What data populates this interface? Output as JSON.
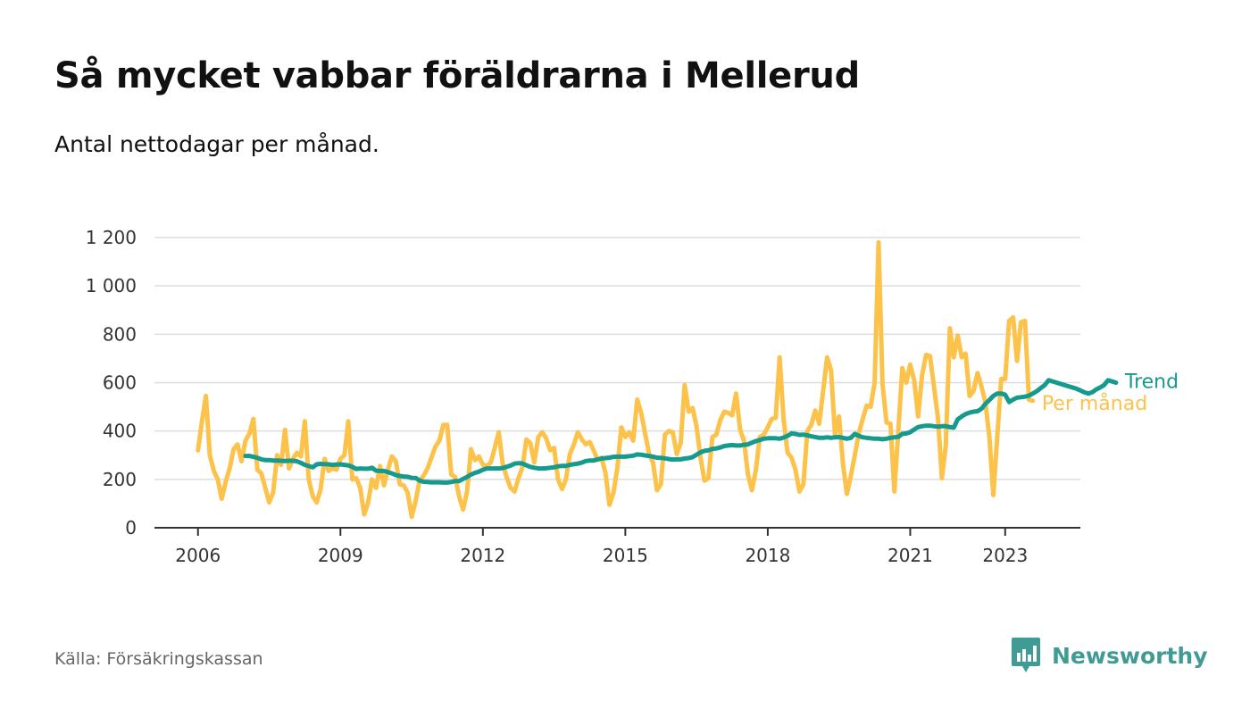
{
  "header": {
    "title": "Så mycket vabbar föräldrarna i Mellerud",
    "subtitle": "Antal nettodagar per månad."
  },
  "footer": {
    "source": "Källa: Försäkringskassan",
    "brand": "Newsworthy",
    "brand_icon": "bar-chart-speech-bubble-icon"
  },
  "colors": {
    "monthly": "#fcc24a",
    "trend": "#169a8d",
    "grid": "#dddddd",
    "axis": "#333333",
    "brand": "#3f9b93"
  },
  "chart_data": {
    "type": "line",
    "title": "Så mycket vabbar föräldrarna i Mellerud",
    "subtitle": "Antal nettodagar per månad.",
    "xlabel": "",
    "ylabel": "",
    "x_start": "2006-01",
    "x_end": "2023-06",
    "xlim": [
      "2005-02",
      "2024-08"
    ],
    "ylim": [
      0,
      1200
    ],
    "y_ticks": [
      0,
      200,
      400,
      600,
      800,
      1000,
      1200
    ],
    "y_tick_labels": [
      "0",
      "200",
      "400",
      "600",
      "800",
      "1 000",
      "1 200"
    ],
    "x_ticks": [
      "2006-01",
      "2009-01",
      "2012-01",
      "2015-01",
      "2018-01",
      "2021-01",
      "2023-01"
    ],
    "x_tick_labels": [
      "2006",
      "2009",
      "2012",
      "2015",
      "2018",
      "2021",
      "2023"
    ],
    "grid": true,
    "legend": "end-of-line labels",
    "series": [
      {
        "name": "Per månad",
        "color": "#fcc24a",
        "start": "2006-01",
        "values": [
          320,
          440,
          545,
          300,
          235,
          200,
          120,
          190,
          245,
          325,
          345,
          275,
          360,
          390,
          450,
          240,
          225,
          165,
          105,
          145,
          300,
          260,
          405,
          245,
          285,
          310,
          295,
          440,
          200,
          130,
          105,
          160,
          285,
          235,
          245,
          240,
          285,
          300,
          440,
          200,
          205,
          165,
          55,
          105,
          200,
          165,
          255,
          175,
          240,
          295,
          275,
          180,
          175,
          145,
          45,
          110,
          195,
          215,
          245,
          290,
          335,
          360,
          425,
          425,
          220,
          210,
          130,
          75,
          150,
          325,
          280,
          295,
          260,
          255,
          270,
          330,
          395,
          265,
          210,
          165,
          150,
          205,
          250,
          365,
          350,
          270,
          375,
          395,
          370,
          320,
          330,
          200,
          160,
          200,
          305,
          345,
          395,
          365,
          345,
          355,
          320,
          280,
          290,
          225,
          95,
          145,
          250,
          415,
          375,
          395,
          360,
          530,
          475,
          390,
          305,
          270,
          155,
          180,
          385,
          400,
          395,
          305,
          350,
          590,
          480,
          495,
          420,
          290,
          195,
          205,
          375,
          385,
          445,
          480,
          475,
          465,
          555,
          405,
          360,
          220,
          155,
          240,
          375,
          385,
          415,
          450,
          455,
          705,
          450,
          310,
          290,
          240,
          150,
          180,
          400,
          425,
          485,
          430,
          565,
          705,
          650,
          385,
          460,
          265,
          140,
          215,
          300,
          390,
          450,
          505,
          500,
          600,
          1180,
          595,
          435,
          430,
          150,
          400,
          660,
          600,
          675,
          610,
          460,
          630,
          715,
          710,
          585,
          455,
          205,
          340,
          825,
          705,
          795,
          705,
          720,
          545,
          565,
          640,
          585,
          520,
          375,
          135,
          375,
          615,
          615,
          855,
          870,
          690,
          850,
          855,
          530,
          525
        ]
      },
      {
        "name": "Trend",
        "color": "#169a8d",
        "start": "2007-01",
        "values": [
          297,
          297,
          293,
          289,
          283,
          280,
          280,
          278,
          278,
          277,
          276,
          277,
          277,
          275,
          268,
          260,
          255,
          250,
          262,
          264,
          263,
          262,
          260,
          261,
          262,
          260,
          258,
          252,
          243,
          245,
          244,
          244,
          248,
          236,
          235,
          235,
          230,
          225,
          218,
          214,
          212,
          211,
          206,
          206,
          195,
          190,
          189,
          188,
          188,
          188,
          187,
          187,
          189,
          193,
          193,
          202,
          210,
          220,
          227,
          232,
          240,
          245,
          245,
          245,
          245,
          247,
          252,
          257,
          265,
          267,
          266,
          258,
          252,
          248,
          245,
          245,
          246,
          248,
          250,
          254,
          256,
          256,
          260,
          263,
          265,
          269,
          276,
          278,
          278,
          283,
          286,
          288,
          290,
          293,
          294,
          294,
          294,
          296,
          298,
          303,
          302,
          299,
          297,
          294,
          290,
          289,
          287,
          284,
          282,
          283,
          283,
          286,
          288,
          292,
          302,
          312,
          318,
          320,
          326,
          328,
          332,
          338,
          340,
          342,
          340,
          340,
          343,
          345,
          352,
          358,
          363,
          368,
          370,
          370,
          370,
          368,
          373,
          380,
          390,
          388,
          384,
          385,
          382,
          378,
          375,
          372,
          372,
          374,
          372,
          374,
          375,
          372,
          368,
          372,
          388,
          380,
          374,
          372,
          370,
          368,
          368,
          366,
          368,
          372,
          374,
          376,
          388,
          390,
          395,
          406,
          416,
          420,
          422,
          422,
          420,
          418,
          420,
          420,
          416,
          414,
          448,
          460,
          470,
          476,
          480,
          482,
          492,
          512,
          528,
          545,
          555,
          555,
          550,
          520,
          530,
          538,
          540,
          542,
          546,
          555,
          565,
          578,
          590,
          610,
          605,
          600,
          595,
          590,
          585,
          580,
          575,
          568,
          560,
          555,
          560,
          572,
          580,
          590,
          610,
          605,
          600
        ]
      }
    ]
  }
}
